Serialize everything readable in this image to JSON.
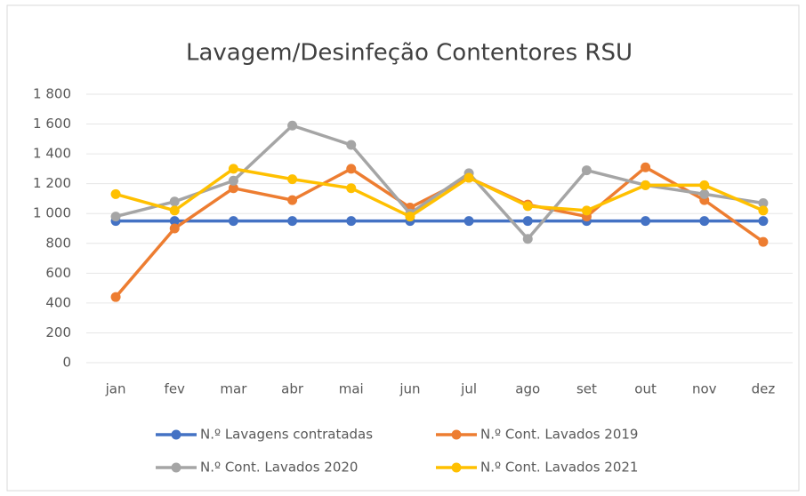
{
  "chart_data": {
    "type": "line",
    "title": "Lavagem/Desinfeção Contentores RSU",
    "categories": [
      "jan",
      "fev",
      "mar",
      "abr",
      "mai",
      "jun",
      "jul",
      "ago",
      "set",
      "out",
      "nov",
      "dez"
    ],
    "series": [
      {
        "name": "N.º Lavagens contratadas",
        "color": "#4472c4",
        "values": [
          950,
          950,
          950,
          950,
          950,
          950,
          950,
          950,
          950,
          950,
          950,
          950
        ]
      },
      {
        "name": "N.º Cont. Lavados 2019",
        "color": "#ed7d31",
        "values": [
          440,
          900,
          1170,
          1090,
          1300,
          1040,
          1240,
          1060,
          980,
          1310,
          1090,
          810
        ]
      },
      {
        "name": "N.º Cont. Lavados 2020",
        "color": "#a5a5a5",
        "values": [
          980,
          1080,
          1220,
          1590,
          1460,
          1000,
          1270,
          830,
          1290,
          1190,
          1130,
          1070
        ]
      },
      {
        "name": "N.º Cont. Lavados 2021",
        "color": "#ffc000",
        "values": [
          1130,
          1020,
          1300,
          1230,
          1170,
          980,
          1240,
          1050,
          1020,
          1190,
          1190,
          1020
        ]
      }
    ],
    "ylim": [
      0,
      1800
    ],
    "yticks": [
      0,
      200,
      400,
      600,
      800,
      {
        "value": 1000,
        "label": "1 000"
      },
      {
        "value": 1200,
        "label": "1 200"
      },
      {
        "value": 1400,
        "label": "1 400"
      },
      {
        "value": 1600,
        "label": "1 600"
      },
      {
        "value": 1800,
        "label": "1 800"
      }
    ],
    "grid": true,
    "legend": "bottom"
  }
}
